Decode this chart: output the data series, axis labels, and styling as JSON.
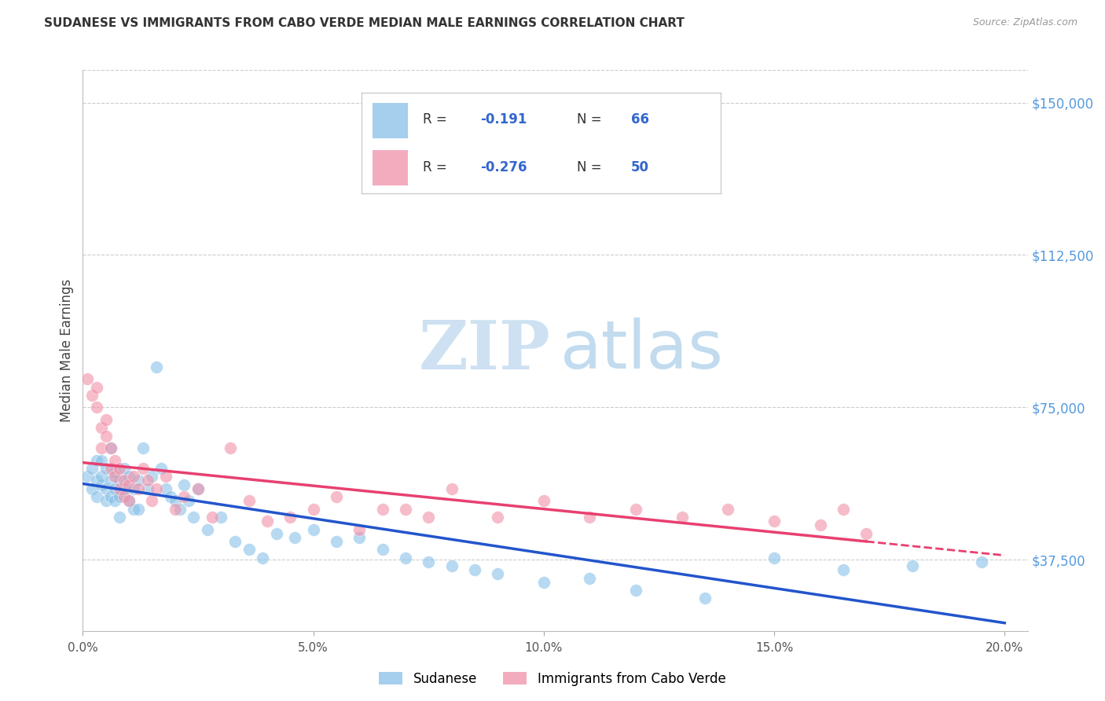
{
  "title": "SUDANESE VS IMMIGRANTS FROM CABO VERDE MEDIAN MALE EARNINGS CORRELATION CHART",
  "source": "Source: ZipAtlas.com",
  "ylabel": "Median Male Earnings",
  "xlabel_ticks": [
    "0.0%",
    "5.0%",
    "10.0%",
    "15.0%",
    "20.0%"
  ],
  "xlabel_vals": [
    0.0,
    0.05,
    0.1,
    0.15,
    0.2
  ],
  "ylabel_ticks": [
    "$37,500",
    "$75,000",
    "$112,500",
    "$150,000"
  ],
  "ylabel_vals": [
    37500,
    75000,
    112500,
    150000
  ],
  "xlim": [
    0.0,
    0.205
  ],
  "ylim": [
    20000,
    158000
  ],
  "series1_label": "Sudanese",
  "series2_label": "Immigrants from Cabo Verde",
  "series1_color": "#88c0e8",
  "series2_color": "#f090a8",
  "trendline1_color": "#2255cc",
  "trendline2_color": "#e84070",
  "background_color": "#ffffff",
  "grid_color": "#cccccc",
  "title_color": "#333333",
  "right_axis_color": "#5599dd",
  "legend_r1": "R =  -0.191",
  "legend_n1": "N = 66",
  "legend_r2": "R =  -0.276",
  "legend_n2": "N = 50",
  "sudanese_x": [
    0.001,
    0.002,
    0.002,
    0.003,
    0.003,
    0.003,
    0.004,
    0.004,
    0.004,
    0.005,
    0.005,
    0.005,
    0.006,
    0.006,
    0.006,
    0.007,
    0.007,
    0.007,
    0.008,
    0.008,
    0.008,
    0.009,
    0.009,
    0.01,
    0.01,
    0.011,
    0.011,
    0.012,
    0.012,
    0.013,
    0.014,
    0.015,
    0.016,
    0.017,
    0.018,
    0.019,
    0.02,
    0.021,
    0.022,
    0.023,
    0.024,
    0.025,
    0.027,
    0.03,
    0.033,
    0.036,
    0.039,
    0.042,
    0.046,
    0.05,
    0.055,
    0.06,
    0.065,
    0.07,
    0.075,
    0.08,
    0.085,
    0.09,
    0.1,
    0.11,
    0.12,
    0.135,
    0.15,
    0.165,
    0.18,
    0.195
  ],
  "sudanese_y": [
    58000,
    60000,
    55000,
    62000,
    57000,
    53000,
    56000,
    62000,
    58000,
    55000,
    60000,
    52000,
    57000,
    53000,
    65000,
    55000,
    59000,
    52000,
    57000,
    53000,
    48000,
    55000,
    60000,
    52000,
    58000,
    50000,
    55000,
    57000,
    50000,
    65000,
    55000,
    58000,
    85000,
    60000,
    55000,
    53000,
    52000,
    50000,
    56000,
    52000,
    48000,
    55000,
    45000,
    48000,
    42000,
    40000,
    38000,
    44000,
    43000,
    45000,
    42000,
    43000,
    40000,
    38000,
    37000,
    36000,
    35000,
    34000,
    32000,
    33000,
    30000,
    28000,
    38000,
    35000,
    36000,
    37000
  ],
  "caboverde_x": [
    0.001,
    0.002,
    0.003,
    0.003,
    0.004,
    0.004,
    0.005,
    0.005,
    0.006,
    0.006,
    0.007,
    0.007,
    0.008,
    0.008,
    0.009,
    0.009,
    0.01,
    0.01,
    0.011,
    0.012,
    0.013,
    0.014,
    0.015,
    0.016,
    0.018,
    0.02,
    0.022,
    0.025,
    0.028,
    0.032,
    0.036,
    0.04,
    0.045,
    0.05,
    0.055,
    0.06,
    0.065,
    0.07,
    0.075,
    0.08,
    0.09,
    0.1,
    0.11,
    0.12,
    0.13,
    0.14,
    0.15,
    0.16,
    0.165,
    0.17
  ],
  "caboverde_y": [
    82000,
    78000,
    75000,
    80000,
    70000,
    65000,
    68000,
    72000,
    60000,
    65000,
    58000,
    62000,
    55000,
    60000,
    57000,
    53000,
    56000,
    52000,
    58000,
    55000,
    60000,
    57000,
    52000,
    55000,
    58000,
    50000,
    53000,
    55000,
    48000,
    65000,
    52000,
    47000,
    48000,
    50000,
    53000,
    45000,
    50000,
    50000,
    48000,
    55000,
    48000,
    52000,
    48000,
    50000,
    48000,
    50000,
    47000,
    46000,
    50000,
    44000
  ]
}
